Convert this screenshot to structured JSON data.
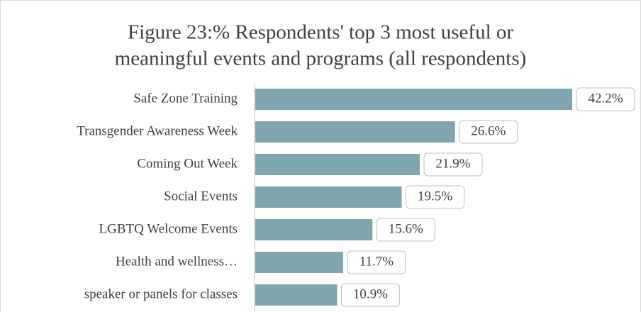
{
  "chart_data": {
    "type": "bar",
    "orientation": "horizontal",
    "title": [
      "Figure 23:% Respondents' top 3 most useful or",
      "meaningful events and programs (all respondents)"
    ],
    "categories": [
      "Safe Zone Training",
      "Transgender Awareness Week",
      "Coming Out Week",
      "Social Events",
      "LGBTQ Welcome Events",
      "Health and wellness…",
      "speaker or panels for classes"
    ],
    "values": [
      42.2,
      26.6,
      21.9,
      19.5,
      15.6,
      11.7,
      10.9
    ],
    "value_labels": [
      "42.2%",
      "26.6%",
      "21.9%",
      "19.5%",
      "15.6%",
      "11.7%",
      "10.9%"
    ],
    "color": "#7fa6ae"
  }
}
